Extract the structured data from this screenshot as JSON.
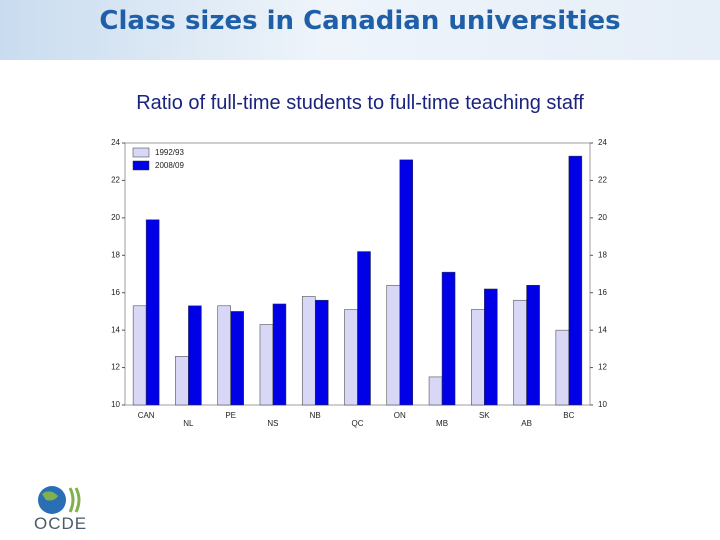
{
  "chart_data": {
    "type": "bar",
    "title": "Class sizes in Canadian universities",
    "subtitle": "Ratio of full-time students to full-time teaching staff",
    "categories": [
      "CAN",
      "NL",
      "PE",
      "NS",
      "NB",
      "QC",
      "ON",
      "MB",
      "SK",
      "AB",
      "BC"
    ],
    "series": [
      {
        "name": "1992/93",
        "color": "#d8d8f6",
        "values": [
          15.3,
          12.6,
          15.3,
          14.3,
          15.8,
          15.1,
          16.4,
          11.5,
          15.1,
          15.6,
          14.0
        ]
      },
      {
        "name": "2008/09",
        "color": "#0000e6",
        "values": [
          19.9,
          15.3,
          15.0,
          15.4,
          15.6,
          18.2,
          23.1,
          17.1,
          16.2,
          16.4,
          23.3
        ]
      }
    ],
    "ylim": [
      10,
      24
    ],
    "yticks": [
      10,
      12,
      14,
      16,
      18,
      20,
      22,
      24
    ],
    "y2lim": [
      10,
      24
    ],
    "y2ticks": [
      10,
      12,
      14,
      16,
      18,
      20,
      22,
      24
    ],
    "legend": "top-left"
  },
  "logo": {
    "text": "OCDE"
  }
}
